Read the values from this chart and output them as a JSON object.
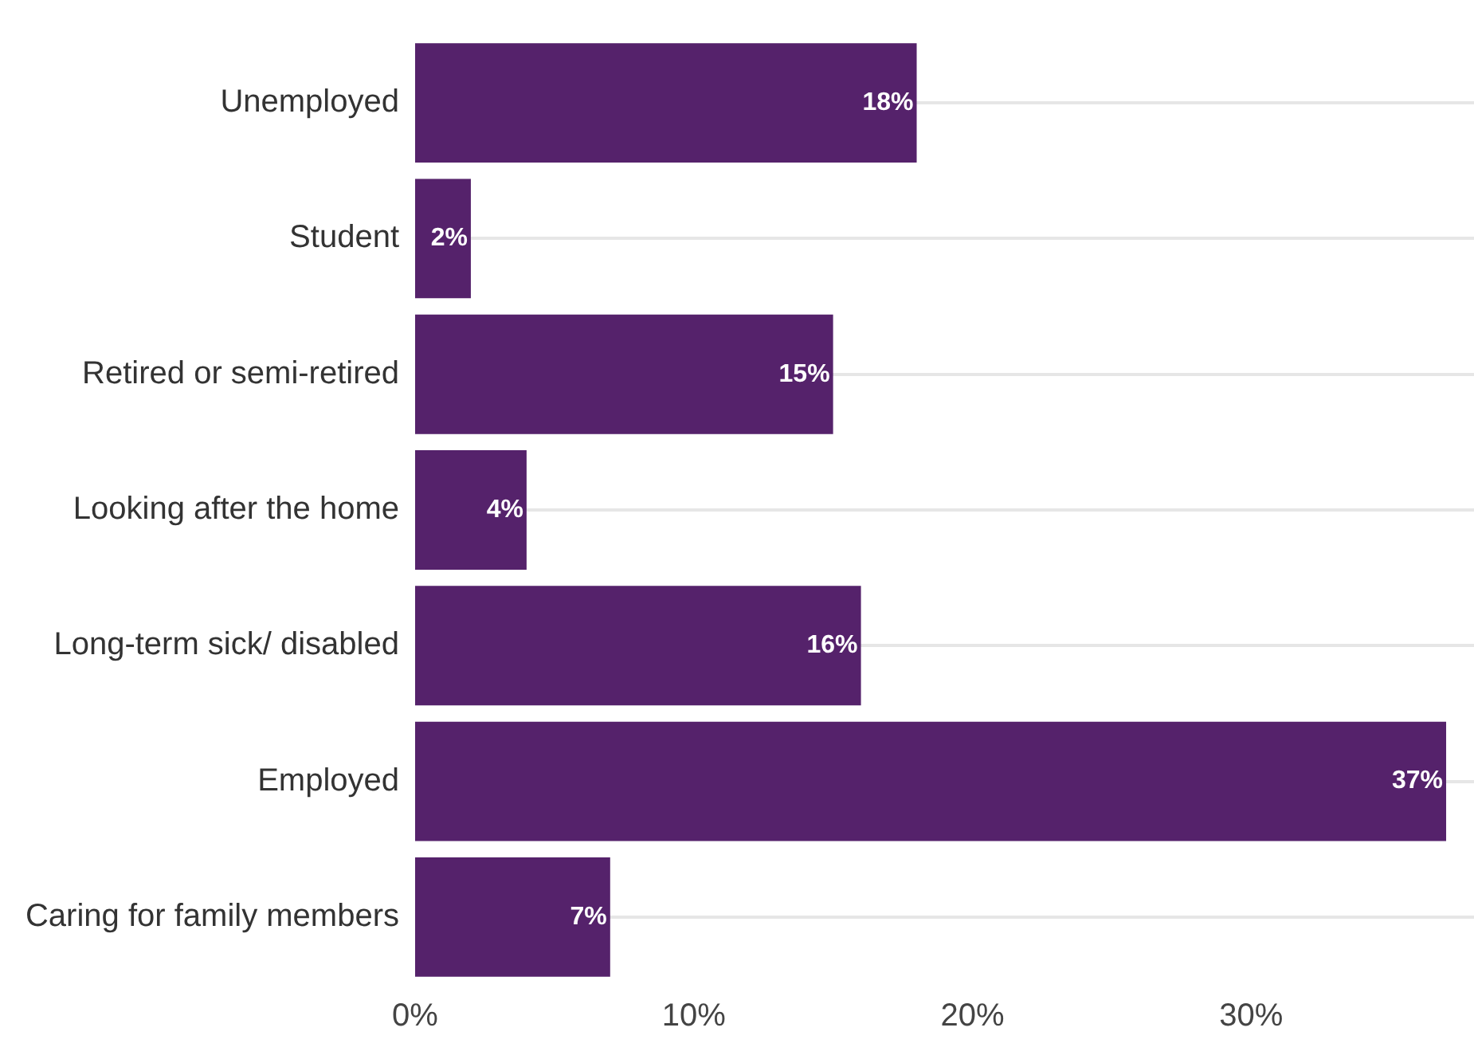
{
  "chart_data": {
    "type": "bar",
    "orientation": "horizontal",
    "categories": [
      "Unemployed",
      "Student",
      "Retired or semi-retired",
      "Looking after the home",
      "Long-term sick/ disabled",
      "Employed",
      "Caring for family members"
    ],
    "values": [
      18,
      2,
      15,
      4,
      16,
      37,
      7
    ],
    "value_labels": [
      "18%",
      "2%",
      "15%",
      "4%",
      "16%",
      "37%",
      "7%"
    ],
    "color": "#55226b",
    "xlim": [
      0,
      38
    ],
    "xticks": [
      {
        "value": 0,
        "label": "0%"
      },
      {
        "value": 10,
        "label": "10%"
      },
      {
        "value": 20,
        "label": "20%"
      },
      {
        "value": 30,
        "label": "30%"
      }
    ],
    "grid": "y",
    "legend": false
  }
}
